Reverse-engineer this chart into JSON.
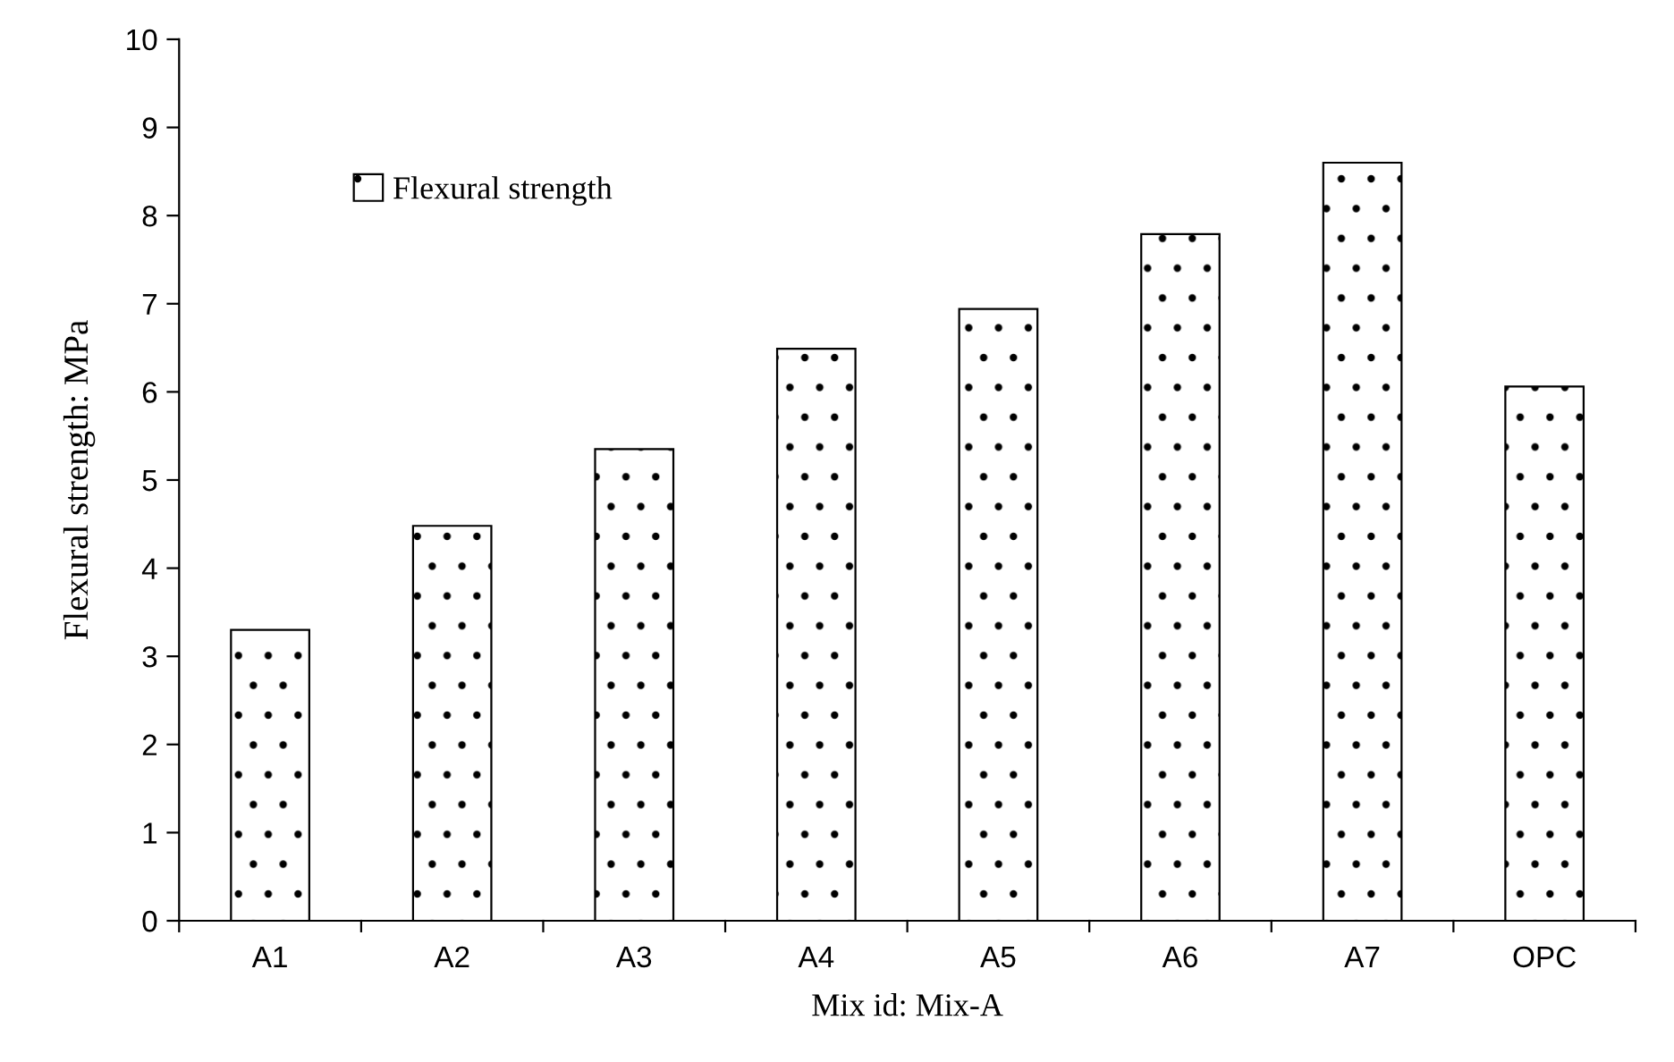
{
  "chart_data": {
    "type": "bar",
    "categories": [
      "A1",
      "A2",
      "A3",
      "A4",
      "A5",
      "A6",
      "A7",
      "OPC"
    ],
    "series": [
      {
        "name": "Flexural strength",
        "color": "#000000",
        "values": [
          3.3,
          4.48,
          5.35,
          6.49,
          6.94,
          7.79,
          8.6,
          6.06
        ]
      }
    ],
    "xlabel": "Mix id: Mix-A",
    "ylabel": "Flexural strength: MPa",
    "ylim": [
      0,
      10
    ],
    "yticks": [
      0,
      1,
      2,
      3,
      4,
      5,
      6,
      7,
      8,
      9,
      10
    ],
    "legend": "top left"
  }
}
